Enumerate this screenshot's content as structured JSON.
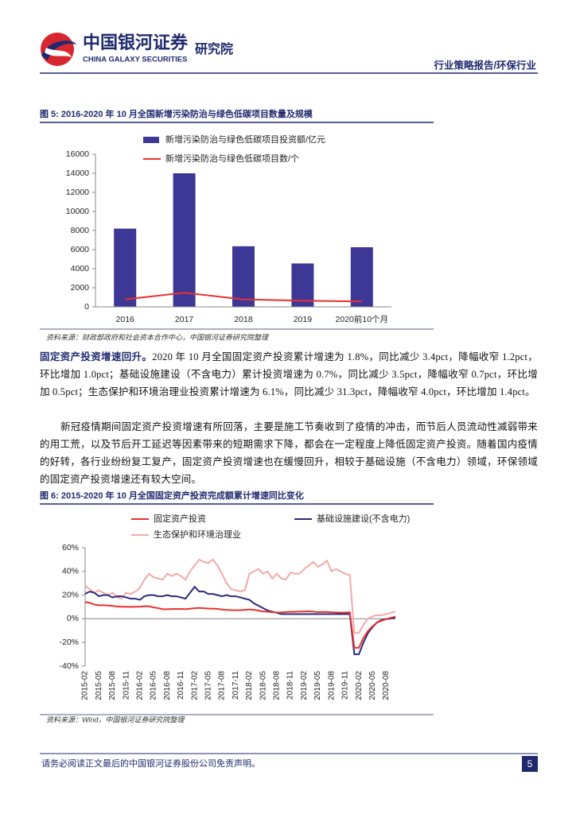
{
  "header": {
    "brand": "中国银河证券",
    "brand_en": "CHINA GALAXY SECURITIES",
    "institute": "研究院",
    "section": "行业策略报告/环保行业"
  },
  "chart_data": [
    {
      "type": "bar",
      "title": "图 5: 2016-2020 年 10 月全国新增污染防治与绿色低碳项目数量及规模",
      "source": "资料来源：财政部政府和社会资本合作中心，中国银河证券研究院整理",
      "categories": [
        "2016",
        "2017",
        "2018",
        "2019",
        "2020前10个月"
      ],
      "series": [
        {
          "name": "新增污染防治与绿色低碳项目投资额/亿元",
          "type": "bar",
          "color": "#3d3796",
          "values": [
            8200,
            14000,
            6350,
            4550,
            6250
          ]
        },
        {
          "name": "新增污染防治与绿色低碳项目数/个",
          "type": "line",
          "color": "#e8312f",
          "values": [
            780,
            1480,
            780,
            650,
            560
          ]
        }
      ],
      "ylim": [
        0,
        16000
      ],
      "yticks": [
        0,
        2000,
        4000,
        6000,
        8000,
        10000,
        12000,
        14000,
        16000
      ]
    },
    {
      "type": "line",
      "title": "图 6: 2015-2020 年 10 月全国固定资产投资完成额累计增速同比变化",
      "source": "资料来源：Wind，中国银河证券研究院整理",
      "categories": [
        "2015-02",
        null,
        null,
        "2015-05",
        null,
        null,
        "2015-08",
        null,
        null,
        "2015-11",
        null,
        null,
        "2016-02",
        null,
        null,
        "2016-05",
        null,
        null,
        "2016-08",
        null,
        null,
        "2016-11",
        null,
        null,
        "2017-02",
        null,
        null,
        "2017-05",
        null,
        null,
        "2017-08",
        null,
        null,
        "2017-11",
        null,
        null,
        "2018-02",
        null,
        null,
        "2018-05",
        null,
        null,
        "2018-08",
        null,
        null,
        "2018-11",
        null,
        null,
        "2019-02",
        null,
        null,
        "2019-05",
        null,
        null,
        "2019-08",
        null,
        null,
        "2019-11",
        null,
        null,
        "2020-02",
        null,
        null,
        "2020-05",
        null,
        null,
        "2020-08",
        null,
        null
      ],
      "series": [
        {
          "name": "固定资产投资",
          "color": "#e8312f",
          "values": [
            14,
            13.5,
            12,
            11.4,
            11.4,
            11.2,
            10.9,
            10.3,
            10.2,
            10.2,
            10,
            10.2,
            10.2,
            10.7,
            10.5,
            9.6,
            9,
            8.1,
            8.1,
            8.2,
            8.2,
            8.3,
            8.1,
            8.5,
            8.9,
            9.2,
            8.9,
            8.6,
            8.6,
            8.3,
            7.8,
            7.5,
            7.3,
            7.2,
            7.2,
            7.5,
            7.9,
            7.5,
            7,
            6.1,
            6,
            5.5,
            5.3,
            5.4,
            5.7,
            5.9,
            5.9,
            6.1,
            6.1,
            6.3,
            6.1,
            5.6,
            5.8,
            5.7,
            5.5,
            5.4,
            5.2,
            5.2,
            5.4,
            -24.5,
            -24.5,
            -16.1,
            -10.3,
            -6.3,
            -3.1,
            -1.6,
            -0.3,
            0.8,
            1.8
          ]
        },
        {
          "name": "基础设施建设(不含电力)",
          "color": "#2b2a7a",
          "values": [
            21,
            23,
            22,
            19,
            20,
            20,
            18,
            19,
            19,
            18,
            17,
            17,
            16,
            19,
            20,
            20,
            19,
            19,
            20,
            19,
            19,
            18,
            17,
            22,
            27,
            23,
            23,
            21,
            21,
            20,
            19,
            20,
            19,
            19,
            18,
            17,
            16,
            13,
            11,
            9,
            7,
            6,
            5,
            4,
            4,
            4,
            4,
            4,
            4,
            4,
            4,
            4,
            4,
            4,
            4,
            4,
            4,
            4,
            4,
            -30,
            -30,
            -20,
            -12,
            -7,
            -3,
            -1,
            -0.3,
            0.2,
            0.7
          ]
        },
        {
          "name": "生态保护和环境治理业",
          "color": "#f4a8a8",
          "values": [
            28,
            25,
            22,
            24,
            22,
            20,
            22,
            18,
            17,
            22,
            21,
            23,
            26,
            33,
            38,
            35,
            34,
            33,
            38,
            36,
            38,
            36,
            33,
            40,
            45,
            50,
            48,
            47,
            50,
            45,
            38,
            30,
            25,
            24,
            23,
            24,
            38,
            40,
            42,
            38,
            40,
            34,
            38,
            34,
            33,
            39,
            38,
            38,
            42,
            45,
            48,
            44,
            46,
            49,
            40,
            42,
            40,
            38,
            37,
            -12,
            -12,
            -5,
            0,
            2,
            3,
            3,
            4,
            5,
            6.1
          ]
        }
      ],
      "ylim": [
        -40,
        60
      ],
      "yticks": [
        {
          "value": -40,
          "label": "-40%"
        },
        {
          "value": -20,
          "label": "-20%"
        },
        {
          "value": 0,
          "label": "0%"
        },
        {
          "value": 20,
          "label": "20%"
        },
        {
          "value": 40,
          "label": "40%"
        },
        {
          "value": 60,
          "label": "60%"
        }
      ]
    }
  ],
  "paragraphs": [
    {
      "lead": "固定资产投资增速回升。",
      "text": "2020 年 10 月全国固定资产投资累计增速为 1.8%，同比减少 3.4pct，降幅收窄 1.2pct，环比增加 1.0pct；基础设施建设（不含电力）累计投资增速为 0.7%，同比减少 3.5pct，降幅收窄 0.7pct，环比增加 0.5pct；生态保护和环境治理业投资累计增速为 6.1%，同比减少 31.3pct，降幅收窄 4.0pct，环比增加 1.4pct。"
    },
    {
      "text": "新冠疫情期间固定资产投资增速有所回落，主要是施工节奏收到了疫情的冲击，而节后人员流动性减弱带来的用工荒，以及节后开工延迟等因素带来的短期需求下降，都会在一定程度上降低固定资产投资。随着国内疫情的好转，各行业纷纷复工复产，固定资产投资增速也在缓慢回升，相较于基础设施（不含电力）领域，环保领域的固定资产投资增速还有较大空间。"
    }
  ],
  "footer": {
    "disclaimer": "请务必阅读正文最后的中国银河证券股份公司免责声明。",
    "page": 5
  }
}
